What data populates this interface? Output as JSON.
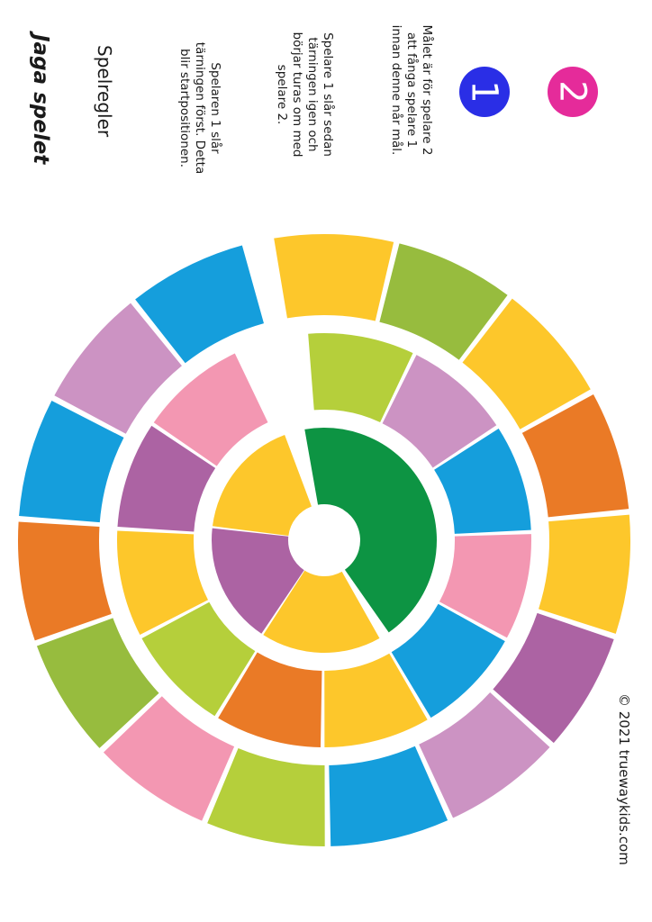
{
  "header": {
    "title": "Jaga spelet",
    "subtitle": "Spelregler"
  },
  "rules": [
    "Spelaren 1 slår tärningen först. Detta blir startpositionen.",
    "Spelare 1 slår sedan tärningen igen och börjar turas om med spelare 2.",
    "Målet är för spelare 2 att fånga spelare 1 innan denne når mål."
  ],
  "players": [
    {
      "label": "1",
      "color": "#2a2ee6"
    },
    {
      "label": "2",
      "color": "#e52b9a"
    }
  ],
  "footer": {
    "copyright": "© 2021 truewaykids.com"
  },
  "board": {
    "colors": {
      "blue": "#159edc",
      "lilac": "#cc93c3",
      "orange": "#ea7a26",
      "green": "#97bc3e",
      "pink": "#f397b2",
      "yellow": "#fdc72b",
      "lime": "#b5cf3b",
      "purple": "#ac63a3",
      "darkgreen": "#0d9443"
    },
    "outer_ring": [
      "yellow",
      "green",
      "yellow",
      "orange",
      "yellow",
      "purple",
      "lilac",
      "blue",
      "lime",
      "pink",
      "green",
      "orange",
      "blue",
      "lilac",
      "blue"
    ],
    "middle_ring": [
      "lime",
      "lilac",
      "blue",
      "pink",
      "blue",
      "yellow",
      "orange",
      "lime",
      "yellow",
      "purple",
      "pink"
    ],
    "inner_ring": [
      "yellow",
      "purple",
      "yellow"
    ],
    "center_color": "darkgreen"
  }
}
